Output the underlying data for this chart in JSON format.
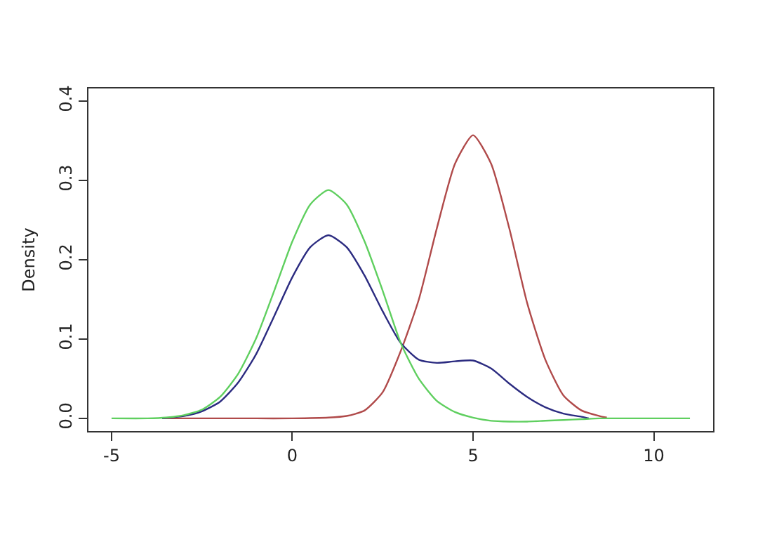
{
  "chart_data": {
    "type": "line",
    "ylabel": "Density",
    "xlim": [
      -5.64,
      11.64
    ],
    "xticks": [
      -5,
      0,
      5,
      10
    ],
    "ylim": [
      -0.016,
      0.416
    ],
    "yticks": [
      {
        "value": 0,
        "label": "0.0"
      },
      0.1,
      0.2,
      0.3,
      0.4
    ],
    "marker": "none",
    "line_style": "solid",
    "series": [
      {
        "color": "#b04a4a",
        "x": [
          -3.6,
          -1,
          0,
          1,
          1.5,
          2,
          2.5,
          3,
          3.5,
          4,
          4.5,
          5,
          5.5,
          6,
          6.5,
          7,
          7.5,
          8,
          8.5,
          8.7
        ],
        "values": [
          0,
          0,
          0,
          0.001,
          0.003,
          0.01,
          0.033,
          0.085,
          0.15,
          0.24,
          0.321,
          0.357,
          0.321,
          0.24,
          0.145,
          0.074,
          0.029,
          0.01,
          0.003,
          0.001
        ]
      },
      {
        "color": "#2b2b80",
        "x": [
          -3.6,
          -3,
          -2.5,
          -2,
          -1.5,
          -1,
          -0.5,
          0,
          0.5,
          1,
          1.5,
          2,
          2.5,
          3,
          3.5,
          4,
          4.5,
          5,
          5.5,
          6,
          6.5,
          7,
          7.5,
          8,
          8.2
        ],
        "values": [
          0,
          0.003,
          0.009,
          0.021,
          0.045,
          0.081,
          0.129,
          0.178,
          0.216,
          0.231,
          0.216,
          0.18,
          0.135,
          0.095,
          0.074,
          0.07,
          0.072,
          0.073,
          0.063,
          0.044,
          0.027,
          0.014,
          0.006,
          0.002,
          0
        ]
      },
      {
        "color": "#5fcf5f",
        "x": [
          -5,
          -4,
          -3.5,
          -3,
          -2.5,
          -2,
          -1.5,
          -1,
          -0.5,
          0,
          0.5,
          1,
          1.5,
          2,
          2.5,
          3,
          3.5,
          4,
          4.5,
          5,
          5.5,
          6,
          6.5,
          7,
          7.5,
          8,
          8.5,
          9,
          10,
          11
        ],
        "values": [
          0,
          0,
          0.001,
          0.004,
          0.011,
          0.027,
          0.056,
          0.101,
          0.161,
          0.223,
          0.27,
          0.288,
          0.27,
          0.223,
          0.161,
          0.095,
          0.05,
          0.022,
          0.008,
          0.001,
          -0.003,
          -0.004,
          -0.004,
          -0.003,
          -0.002,
          -0.001,
          0,
          0,
          0,
          0
        ]
      }
    ]
  }
}
